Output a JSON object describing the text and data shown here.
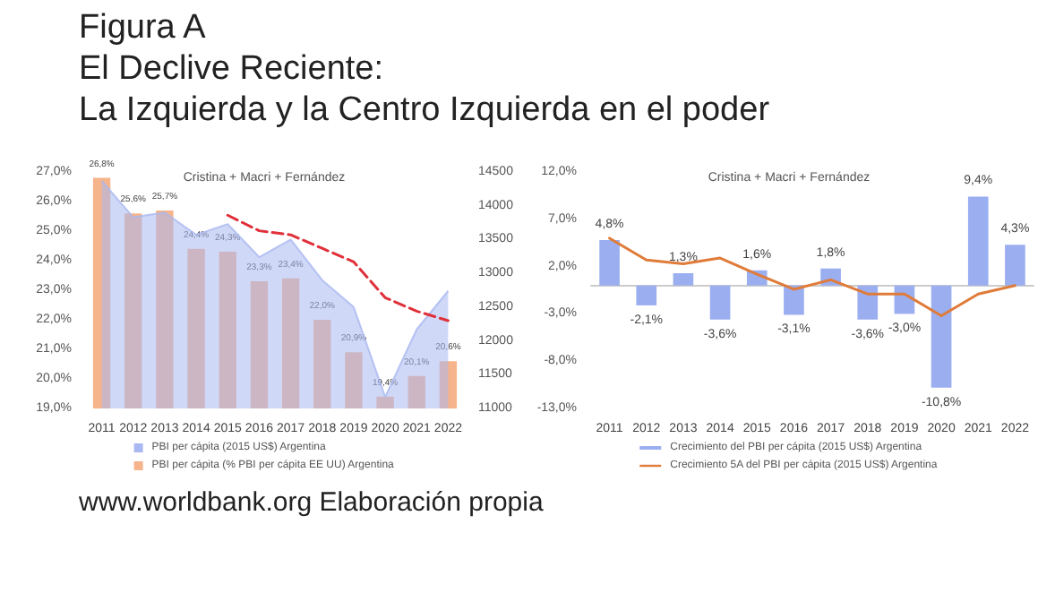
{
  "chart_data": [
    {
      "type": "bar",
      "title": "Figura A",
      "subtitle": "El Declive Reciente:\nLa Izquierda y la Centro Izquierda en el poder",
      "annotations": [
        "Cristina + Macri + Fernández",
        "www.worldbank.org Elaboración propia"
      ],
      "categories": [
        "2011",
        "2012",
        "2013",
        "2014",
        "2015",
        "2016",
        "2017",
        "2018",
        "2019",
        "2020",
        "2021",
        "2022"
      ],
      "series": [
        {
          "name": "PBI per cápita (2015 US$) Argentina",
          "type": "area",
          "axis": "y2",
          "color": "#a9b8f0",
          "values": [
            14370,
            13830,
            13900,
            13570,
            13730,
            13240,
            13500,
            12900,
            12500,
            11170,
            12170,
            12740
          ]
        },
        {
          "name": "PBI per cápita (% PBI per cápita EE UU) Argentina",
          "color": "#f5b48c",
          "values": [
            26.8,
            25.6,
            25.7,
            24.4,
            24.3,
            23.3,
            23.4,
            22.0,
            20.9,
            19.4,
            20.1,
            20.6
          ],
          "value_labels": [
            "26,8%",
            "25,6%",
            "25,7%",
            "24,4%",
            "24,3%",
            "23,3%",
            "23,4%",
            "22,0%",
            "20,9%",
            "19,4%",
            "20,1%",
            "20,6%"
          ]
        },
        {
          "type": "line",
          "axis": "y2",
          "color": "#e0303a",
          "line_style": "dashed",
          "values": [
            null,
            null,
            null,
            null,
            13860,
            13630,
            13570,
            13370,
            13170,
            12640,
            12440,
            12300
          ]
        }
      ],
      "ylim": [
        19,
        27
      ],
      "yticks": [
        {
          "value": 19,
          "label": "19,0%"
        },
        {
          "value": 20,
          "label": "20,0%"
        },
        {
          "value": 21,
          "label": "21,0%"
        },
        {
          "value": 22,
          "label": "22,0%"
        },
        {
          "value": 23,
          "label": "23,0%"
        },
        {
          "value": 24,
          "label": "24,0%"
        },
        {
          "value": 25,
          "label": "25,0%"
        },
        {
          "value": 26,
          "label": "26,0%"
        },
        {
          "value": 27,
          "label": "27,0%"
        }
      ],
      "y2lim": [
        11000,
        14500
      ],
      "y2ticks": [
        11000,
        11500,
        12000,
        12500,
        13000,
        13500,
        14000,
        14500
      ],
      "legend": "bottom"
    },
    {
      "type": "bar",
      "annotations": [
        "Cristina + Macri + Fernández"
      ],
      "categories": [
        "2011",
        "2012",
        "2013",
        "2014",
        "2015",
        "2016",
        "2017",
        "2018",
        "2019",
        "2020",
        "2021",
        "2022"
      ],
      "series": [
        {
          "name": "Crecimiento del PBI per cápita (2015 US$) Argentina",
          "color": "#9aaef0",
          "values": [
            4.8,
            -2.1,
            1.3,
            -3.6,
            1.6,
            -3.1,
            1.8,
            -3.6,
            -3.0,
            -10.8,
            9.4,
            4.3
          ],
          "value_labels": [
            "4,8%",
            "-2,1%",
            "1,3%",
            "-3,6%",
            "1,6%",
            "-3,1%",
            "1,8%",
            "-3,6%",
            "-3,0%",
            "-10,8%",
            "9,4%",
            "4,3%"
          ]
        },
        {
          "name": "Crecimiento 5A del PBI per cápita (2015 US$) Argentina",
          "type": "line",
          "color": "#e07b39",
          "marker": "none",
          "values": [
            5.0,
            2.7,
            2.3,
            2.9,
            1.2,
            -0.4,
            0.6,
            -0.9,
            -0.9,
            -3.2,
            -0.9,
            0.0
          ]
        }
      ],
      "ylim": [
        -13,
        12
      ],
      "yticks": [
        {
          "value": -13,
          "label": "-13,0%"
        },
        {
          "value": -8,
          "label": "-8,0%"
        },
        {
          "value": -3,
          "label": "-3,0%"
        },
        {
          "value": 2,
          "label": "2,0%"
        },
        {
          "value": 7,
          "label": "7,0%"
        },
        {
          "value": 12,
          "label": "12,0%"
        }
      ],
      "legend": "bottom"
    }
  ]
}
